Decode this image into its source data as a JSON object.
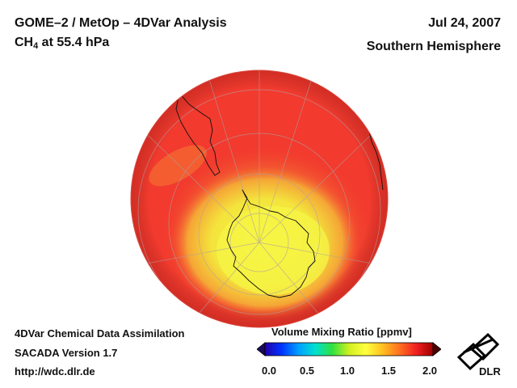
{
  "header": {
    "title": "GOME–2 / MetOp – 4DVar Analysis",
    "species_main": "CH",
    "species_sub": "4",
    "species_rest": " at 55.4 hPa",
    "date": "Jul 24, 2007",
    "region": "Southern Hemisphere"
  },
  "footer": {
    "line1": "4DVar Chemical Data Assimilation",
    "line2": "SACADA Version 1.7",
    "line3": "http://wdc.dlr.de"
  },
  "colorbar": {
    "title": "Volume Mixing Ratio [ppmv]",
    "ticks": [
      "0.0",
      "0.5",
      "1.0",
      "1.5",
      "2.0"
    ],
    "range": [
      0.0,
      2.0
    ],
    "colors": [
      "#2200aa",
      "#0033ff",
      "#00a0ff",
      "#00e0d0",
      "#30e040",
      "#d0f020",
      "#ffff40",
      "#ffc020",
      "#ff7020",
      "#f02020",
      "#a00000"
    ]
  },
  "map": {
    "projection": "orthographic, south pole centered",
    "dominant_color": "#f23a2e",
    "low_value_color": "#f2f040"
  },
  "logo": {
    "text": "DLR"
  }
}
